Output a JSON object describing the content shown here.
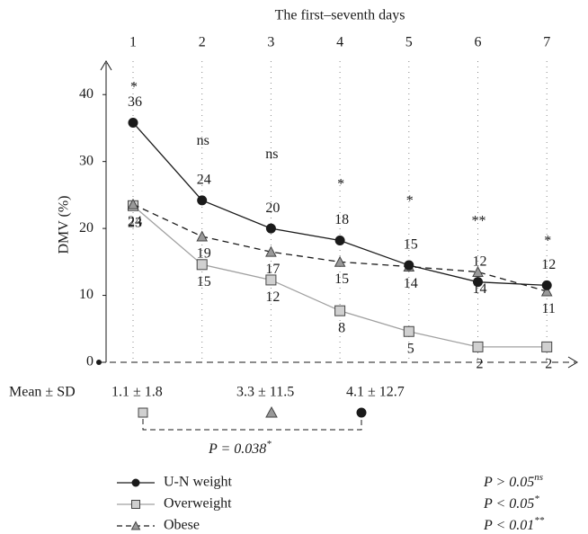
{
  "chart_data": {
    "type": "line",
    "title": "The first–seventh days",
    "y_label": "DMV (%)",
    "categories": [
      "1",
      "2",
      "3",
      "4",
      "5",
      "6",
      "7"
    ],
    "ylim": [
      0,
      45
    ],
    "yticks": [
      0,
      10,
      20,
      30,
      40
    ],
    "grid": true,
    "series": [
      {
        "name": "U-N weight",
        "color": "#1a1a1a",
        "marker": "circle",
        "marker_fill": "#1a1a1a",
        "dash": "solid",
        "values": [
          35.8,
          24.2,
          20,
          18.2,
          14.5,
          12,
          11.5
        ],
        "value_labels": [
          "36",
          "24",
          "20",
          "18",
          "15",
          "12",
          "12"
        ]
      },
      {
        "name": "Overweight",
        "color": "#a0a0a0",
        "marker": "square",
        "marker_fill": "#d0d0d0",
        "dash": "solid",
        "values": [
          23.4,
          14.6,
          12.3,
          7.7,
          4.6,
          2.3,
          2.3
        ],
        "value_labels": [
          "23",
          "15",
          "12",
          "8",
          "5",
          "2",
          "2"
        ]
      },
      {
        "name": "Obese",
        "color": "#1a1a1a",
        "marker": "triangle",
        "marker_fill": "#999999",
        "dash": "dashed",
        "values": [
          23.6,
          18.8,
          16.5,
          15,
          14.3,
          13.5,
          10.6
        ],
        "value_labels": [
          "24",
          "19",
          "17",
          "15",
          "14",
          "14",
          "11"
        ]
      }
    ],
    "significance": [
      "*",
      "ns",
      "ns",
      "*",
      "*",
      "**",
      "*"
    ],
    "mean_sd": {
      "label": "Mean ± SD",
      "values": [
        "1.1 ± 1.8",
        "3.3 ± 11.5",
        "4.1 ± 12.7"
      ]
    },
    "comparison": {
      "text": "P = 0.038",
      "sup": "*"
    },
    "p_notes": [
      {
        "text": "P > 0.05",
        "sup": "ns"
      },
      {
        "text": "P < 0.05",
        "sup": "*"
      },
      {
        "text": "P < 0.01",
        "sup": "**"
      }
    ]
  }
}
